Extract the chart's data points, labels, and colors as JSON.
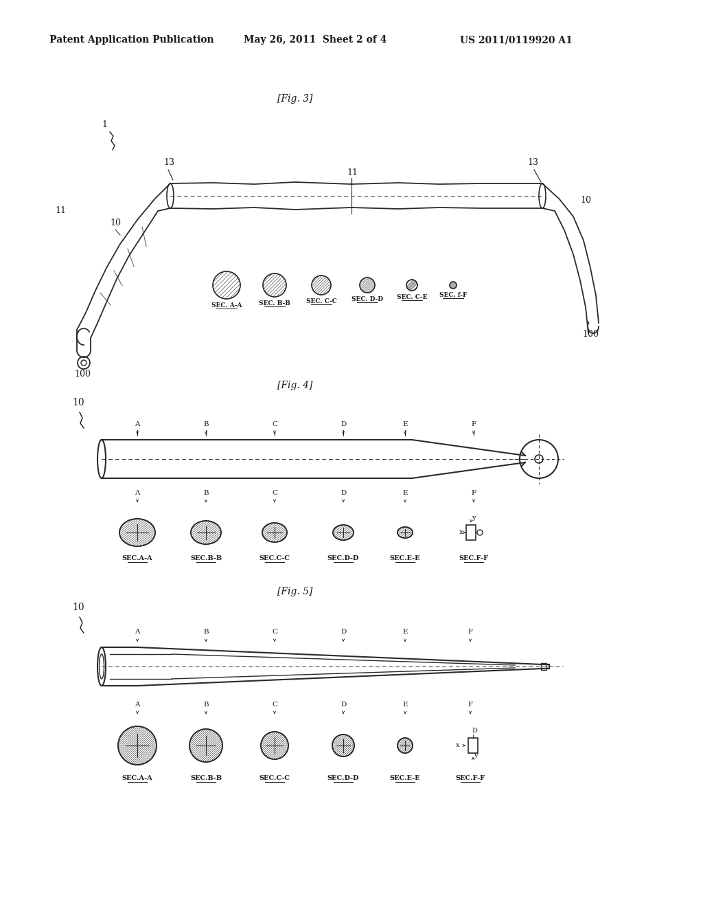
{
  "bg_color": "#ffffff",
  "header_left": "Patent Application Publication",
  "header_mid": "May 26, 2011  Sheet 2 of 4",
  "header_right": "US 2011/0119920 A1",
  "fig3_label": "[Fig. 3]",
  "fig4_label": "[Fig. 4]",
  "fig5_label": "[Fig. 5]",
  "section_labels": [
    "SEC.A-A",
    "SEC.B-B",
    "SEC.C-C",
    "SEC.D-D",
    "SEC.E-E",
    "SEC.F-F"
  ],
  "section_labels_fig3": [
    "SEC. A-A",
    "SEC. B-B",
    "SEC. C-C",
    "SEC. D-D",
    "SEC. C-E",
    "SEC. f-F"
  ],
  "point_labels_fig4": [
    "A",
    "B",
    "C",
    "D",
    "E",
    "F"
  ],
  "point_labels_fig5": [
    "A",
    "B",
    "C",
    "D",
    "E",
    "F"
  ],
  "line_color": "#2a2a2a",
  "hatch_color": "#555555",
  "text_color": "#1a1a1a"
}
